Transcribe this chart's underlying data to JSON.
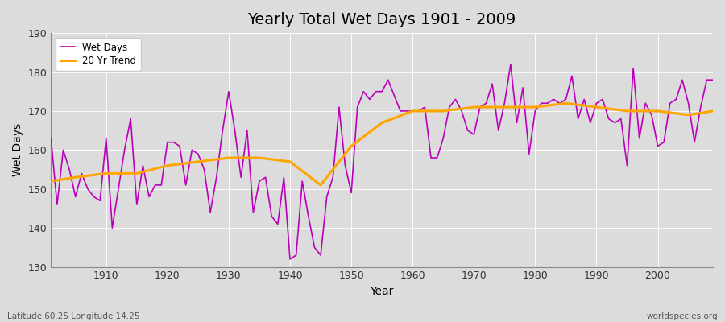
{
  "title": "Yearly Total Wet Days 1901 - 2009",
  "xlabel": "Year",
  "ylabel": "Wet Days",
  "ylim": [
    130,
    190
  ],
  "xlim": [
    1901,
    2009
  ],
  "yticks": [
    130,
    140,
    150,
    160,
    170,
    180,
    190
  ],
  "xticks": [
    1910,
    1920,
    1930,
    1940,
    1950,
    1960,
    1970,
    1980,
    1990,
    2000
  ],
  "bg_color": "#dcdcdc",
  "line_color": "#bb00bb",
  "trend_color": "#ffa500",
  "subtitle_left": "Latitude 60.25 Longitude 14.25",
  "subtitle_right": "worldspecies.org",
  "wet_days": [
    163,
    146,
    160,
    155,
    148,
    154,
    150,
    148,
    147,
    163,
    140,
    150,
    160,
    168,
    146,
    156,
    148,
    151,
    151,
    162,
    162,
    161,
    151,
    160,
    159,
    155,
    144,
    153,
    165,
    175,
    165,
    153,
    165,
    144,
    152,
    153,
    143,
    141,
    153,
    132,
    133,
    152,
    143,
    135,
    133,
    148,
    153,
    171,
    156,
    149,
    171,
    175,
    173,
    175,
    175,
    178,
    174,
    170,
    170,
    170,
    170,
    171,
    158,
    158,
    163,
    171,
    173,
    170,
    165,
    164,
    171,
    172,
    177,
    165,
    172,
    182,
    167,
    176,
    159,
    170,
    172,
    172,
    173,
    172,
    173,
    179,
    168,
    173,
    167,
    172,
    173,
    168,
    167,
    168,
    156,
    181,
    163,
    172,
    169,
    161,
    162,
    172,
    173,
    178,
    172,
    162,
    171,
    178,
    178
  ],
  "trend_years": [
    1901,
    1905,
    1910,
    1915,
    1920,
    1925,
    1930,
    1935,
    1940,
    1945,
    1950,
    1955,
    1960,
    1963,
    1965,
    1970,
    1975,
    1980,
    1985,
    1990,
    1995,
    2000,
    2005,
    2009
  ],
  "trend_values": [
    152,
    153,
    154,
    154,
    156,
    157,
    158,
    158,
    157,
    151,
    161,
    167,
    170,
    170,
    170,
    171,
    171,
    171,
    172,
    171,
    170,
    170,
    169,
    170
  ]
}
